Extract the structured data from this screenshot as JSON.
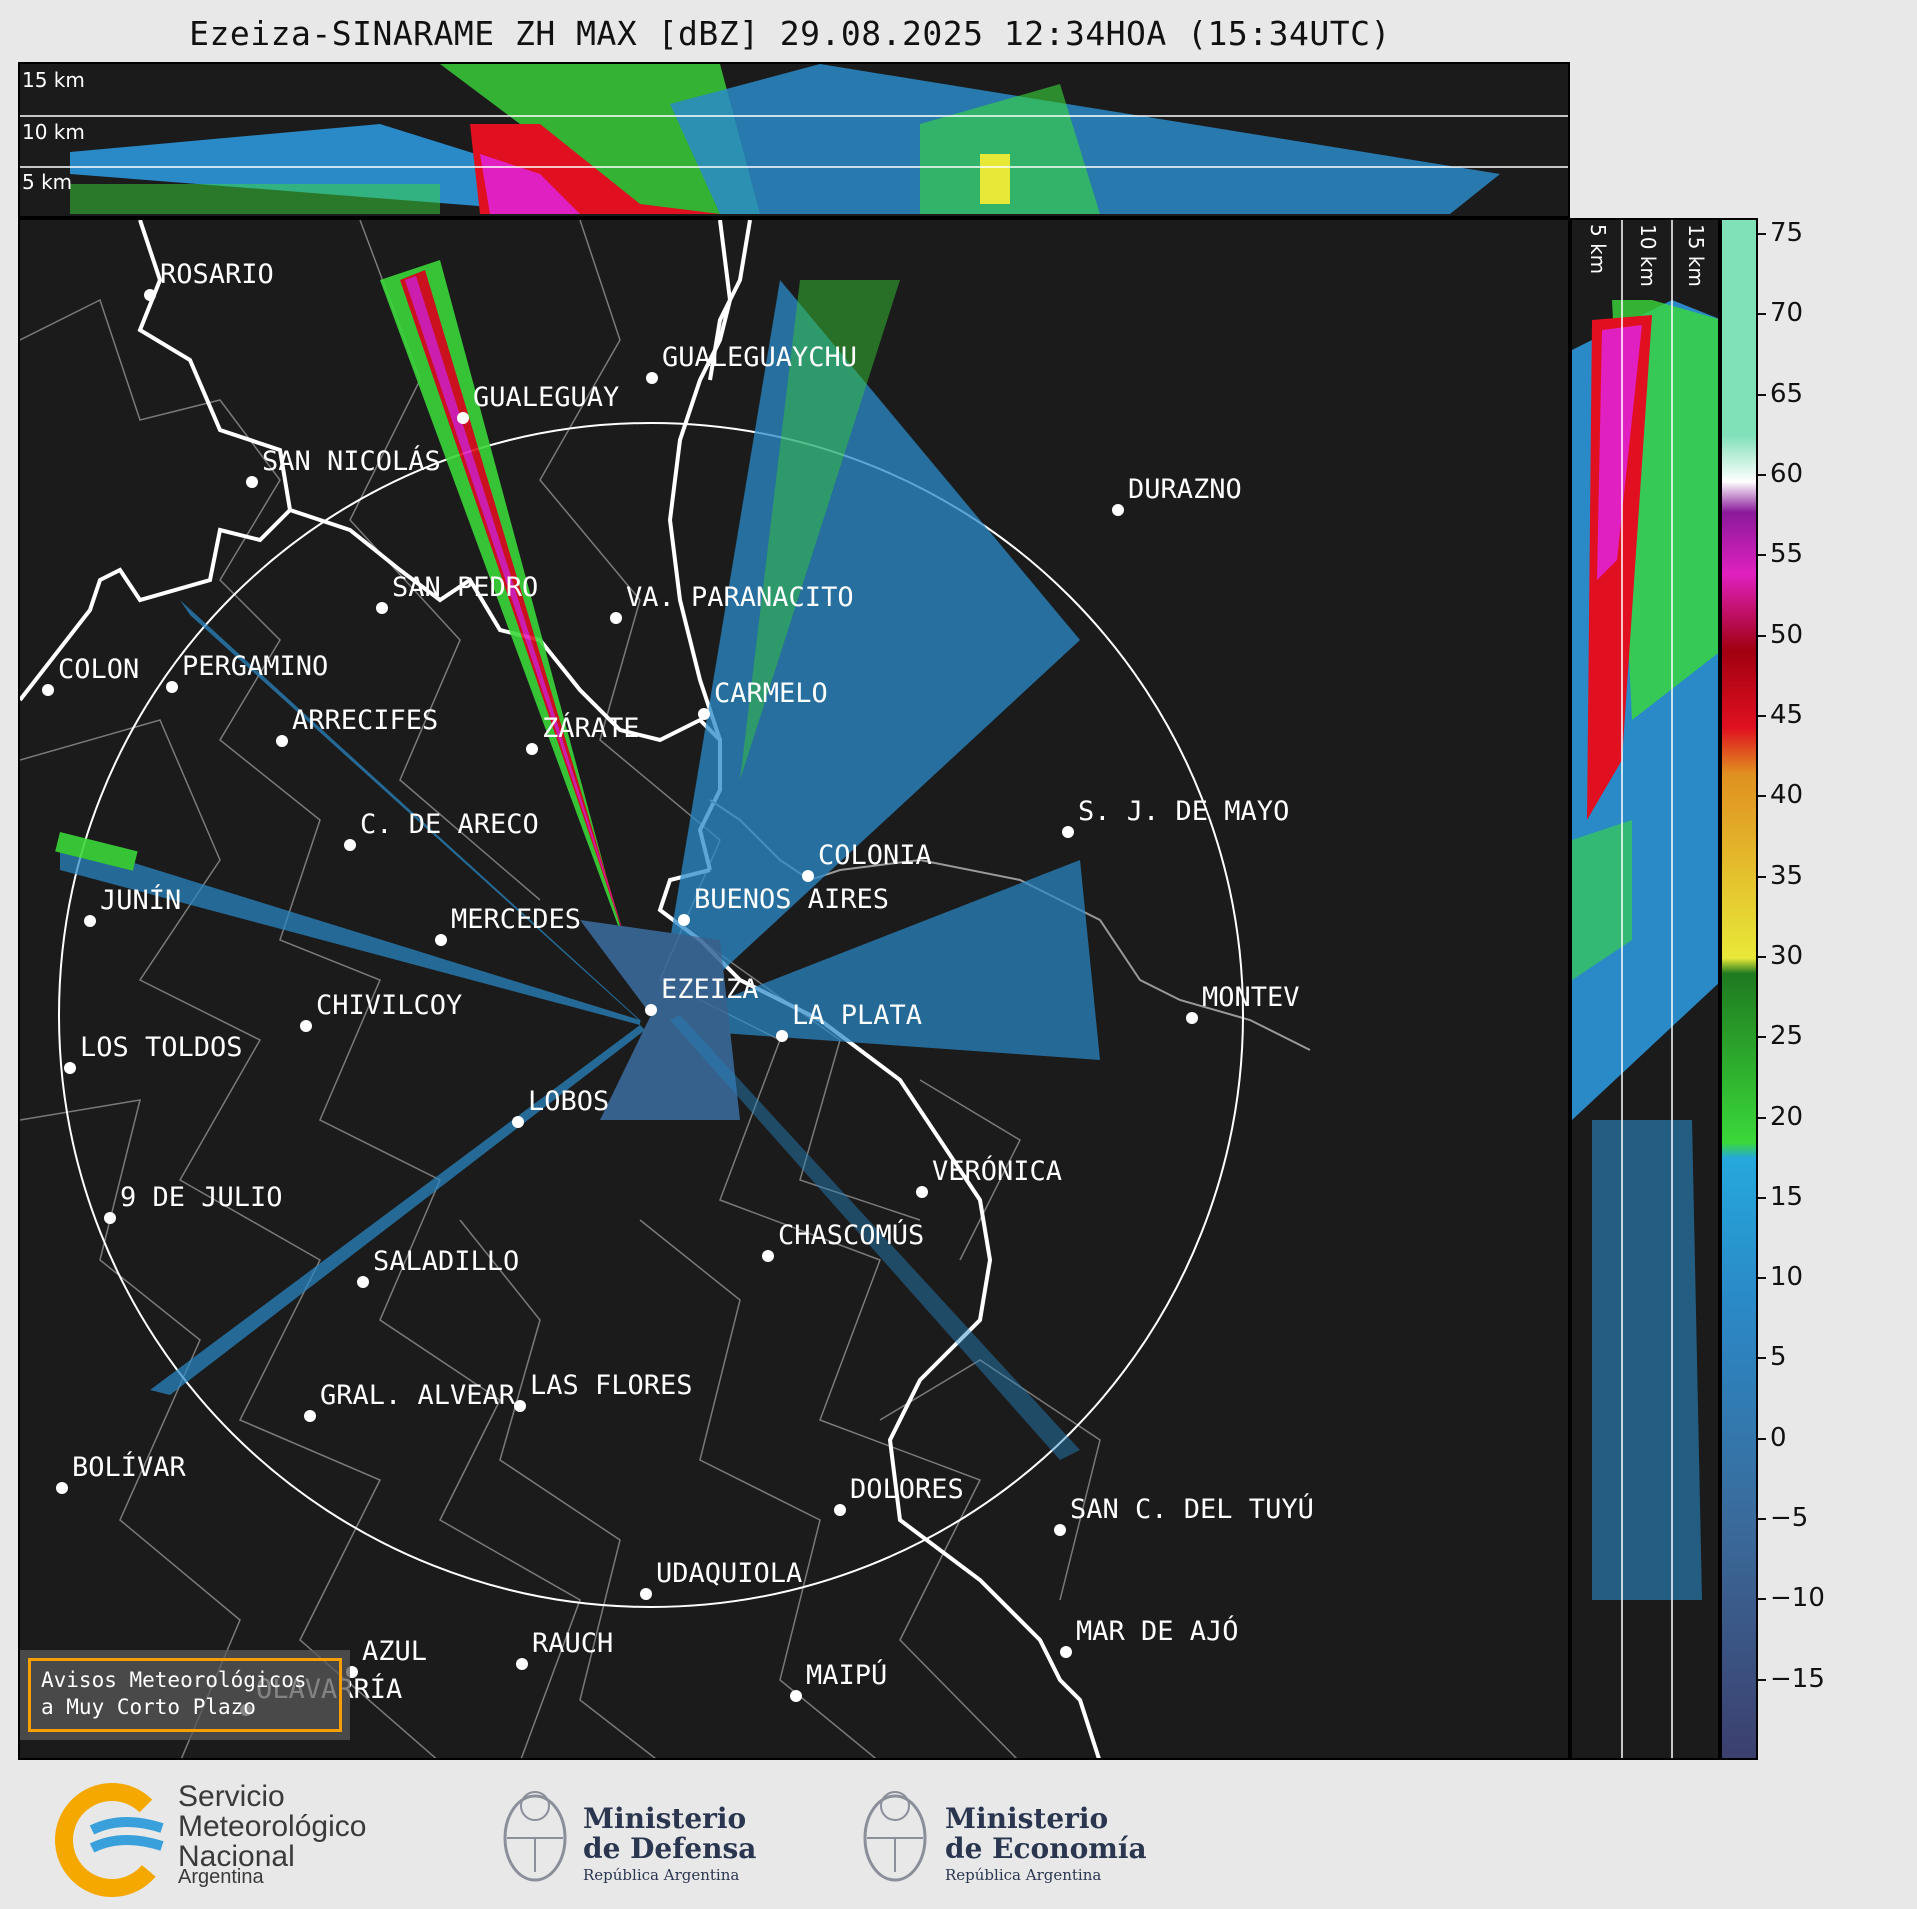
{
  "title": "Ezeiza-SINARAME ZH MAX [dBZ] 29.08.2025 12:34HOA (15:34UTC)",
  "top_panel": {
    "height_labels": [
      "15 km",
      "10 km",
      "5 km"
    ]
  },
  "side_panel": {
    "height_labels": [
      "5 km",
      "10 km",
      "15 km"
    ]
  },
  "colorbar": {
    "ticks": [
      "75",
      "70",
      "65",
      "60",
      "55",
      "50",
      "45",
      "40",
      "35",
      "30",
      "25",
      "20",
      "15",
      "10",
      "5",
      "0",
      "−5",
      "−10",
      "−15"
    ],
    "colors": {
      "negative": "#3b3f6e",
      "low": "#3a6a9a",
      "mid_blue": "#2a8ac8",
      "light_blue": "#25a8dc",
      "green": "#3ad83a",
      "dark_green": "#1f7a1f",
      "yellow": "#e8e838",
      "orange": "#e09020",
      "red": "#e01020",
      "dark_red": "#a00010",
      "magenta": "#e020c0",
      "purple": "#8a1a9a",
      "white": "#ffffff",
      "mint": "#80e0b8"
    }
  },
  "cities": [
    {
      "name": "ROSARIO"
    },
    {
      "name": "GUALEGUAYCHU"
    },
    {
      "name": "GUALEGUAY"
    },
    {
      "name": "SAN NICOLÁS"
    },
    {
      "name": "DURAZNO"
    },
    {
      "name": "SAN PEDRO"
    },
    {
      "name": "VA. PARANACITO"
    },
    {
      "name": "COLON"
    },
    {
      "name": "PERGAMINO"
    },
    {
      "name": "CARMELO"
    },
    {
      "name": "ARRECIFES"
    },
    {
      "name": "ZÁRATE"
    },
    {
      "name": "S. J. DE MAYO"
    },
    {
      "name": "C. DE ARECO"
    },
    {
      "name": "COLONIA"
    },
    {
      "name": "JUNÍN"
    },
    {
      "name": "BUENOS AIRES"
    },
    {
      "name": "MERCEDES"
    },
    {
      "name": "EZEIZA"
    },
    {
      "name": "MONTEV"
    },
    {
      "name": "CHIVILCOY"
    },
    {
      "name": "LA PLATA"
    },
    {
      "name": "LOS TOLDOS"
    },
    {
      "name": "LOBOS"
    },
    {
      "name": "VERÓNICA"
    },
    {
      "name": "9 DE JULIO"
    },
    {
      "name": "CHASCOMÚS"
    },
    {
      "name": "SALADILLO"
    },
    {
      "name": "GRAL. ALVEAR"
    },
    {
      "name": "LAS FLORES"
    },
    {
      "name": "BOLÍVAR"
    },
    {
      "name": "DOLORES"
    },
    {
      "name": "SAN C. DEL TUYÚ"
    },
    {
      "name": "UDAQUIOLA"
    },
    {
      "name": "AZUL"
    },
    {
      "name": "RAUCH"
    },
    {
      "name": "MAR DE AJÓ"
    },
    {
      "name": "MAIPÚ"
    },
    {
      "name": "OLAVARRÍA"
    }
  ],
  "alert_box": {
    "line1": "Avisos Meteorológicos",
    "line2": "a Muy Corto Plazo"
  },
  "footer": {
    "smn": {
      "line1": "Servicio",
      "line2": "Meteorológico",
      "line3": "Nacional",
      "country": "Argentina"
    },
    "defensa": {
      "line1": "Ministerio",
      "line2": "de Defensa",
      "sub": "República Argentina"
    },
    "economia": {
      "line1": "Ministerio",
      "line2": "de Economía",
      "sub": "República Argentina"
    }
  }
}
